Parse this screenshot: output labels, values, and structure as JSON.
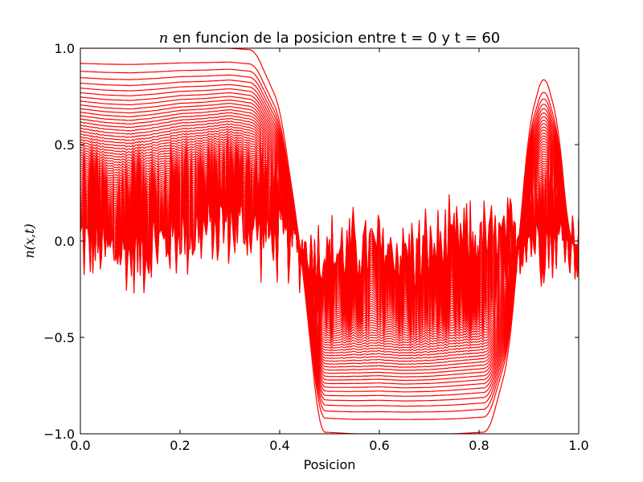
{
  "chart_data": {
    "type": "line",
    "title_symbol": "n",
    "title_rest": " en funcion de la posicion entre t = 0 y t = 60",
    "xlabel": "Posicion",
    "ylabel": "n(x,t)",
    "xlim": [
      0.0,
      1.0
    ],
    "ylim": [
      -1.0,
      1.0
    ],
    "xticks": [
      0.0,
      0.2,
      0.4,
      0.6,
      0.8,
      1.0
    ],
    "yticks": [
      -1.0,
      -0.5,
      0.0,
      0.5,
      1.0
    ],
    "xtick_labels": [
      "0.0",
      "0.2",
      "0.4",
      "0.6",
      "0.8",
      "1.0"
    ],
    "ytick_labels": [
      "−1.0",
      "−0.5",
      "0.0",
      "0.5",
      "1.0"
    ],
    "legend": "none",
    "grid": false,
    "color": "#ff0000",
    "t_range": [
      0,
      60
    ],
    "initial_profile": {
      "x": [
        0.0,
        0.1,
        0.2,
        0.3,
        0.35,
        0.4,
        0.44,
        0.48,
        0.55,
        0.65,
        0.75,
        0.82,
        0.86,
        0.9,
        0.93,
        0.96,
        0.98,
        1.0
      ],
      "y": [
        1.0,
        1.0,
        1.0,
        1.0,
        0.99,
        0.7,
        0.0,
        -0.99,
        -1.0,
        -1.0,
        -1.0,
        -0.99,
        -0.6,
        0.6,
        0.89,
        0.6,
        0.0,
        -0.05
      ]
    },
    "final_state": {
      "x": [
        0.0,
        0.05,
        0.1,
        0.15,
        0.2,
        0.25,
        0.3,
        0.35,
        0.4,
        0.45,
        0.5,
        0.55,
        0.6,
        0.65,
        0.7,
        0.75,
        0.8,
        0.85,
        0.9,
        0.95,
        1.0
      ],
      "y": [
        0.0,
        -0.05,
        -0.07,
        -0.03,
        0.03,
        0.05,
        0.09,
        0.05,
        0.0,
        -0.04,
        -0.07,
        -0.05,
        -0.04,
        -0.06,
        -0.05,
        -0.02,
        0.0,
        0.01,
        0.02,
        0.0,
        0.0
      ],
      "noise_amplitude": 0.28
    }
  }
}
